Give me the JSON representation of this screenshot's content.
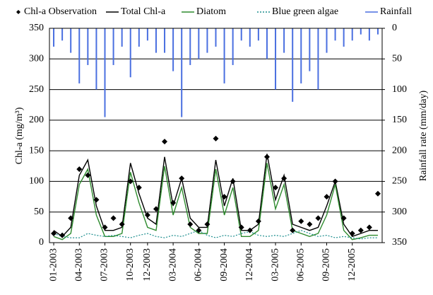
{
  "chart_data": {
    "type": "combo",
    "ylabel": "Chl-a (mg/m³)",
    "y2label": "Rainfall rate (mm/day)",
    "categories": [
      "01-2003",
      null,
      null,
      "04-2003",
      null,
      null,
      "07-2003",
      null,
      null,
      "10-2003",
      null,
      "12-2003",
      null,
      null,
      "03-2004",
      null,
      null,
      "06-2004",
      null,
      null,
      "09-2004",
      null,
      null,
      "12-2004",
      null,
      null,
      "03-2005",
      null,
      null,
      "06-2005",
      null,
      null,
      "09-2005",
      null,
      null,
      "12-2005",
      null,
      null,
      null
    ],
    "ylim": [
      0,
      350
    ],
    "yticks": [
      0,
      50,
      100,
      150,
      200,
      250,
      300,
      350
    ],
    "y2lim": [
      0,
      350
    ],
    "y2ticks": [
      0,
      50,
      100,
      150,
      200,
      250,
      300,
      350
    ],
    "y2_inverted": true,
    "grid": true,
    "legend": "top",
    "series": [
      {
        "name": "Chl-a Observation",
        "mark": "scatter",
        "color": "#000000",
        "values": [
          15,
          12,
          40,
          120,
          110,
          70,
          25,
          40,
          30,
          100,
          90,
          45,
          55,
          165,
          65,
          105,
          30,
          20,
          30,
          170,
          75,
          100,
          25,
          20,
          35,
          140,
          90,
          105,
          20,
          35,
          30,
          40,
          75,
          100,
          40,
          15,
          20,
          25,
          80
        ]
      },
      {
        "name": "Total Chl-a",
        "mark": "line",
        "color": "#000000",
        "line_style": "solid",
        "values": [
          20,
          10,
          25,
          110,
          135,
          60,
          20,
          20,
          25,
          130,
          80,
          40,
          30,
          140,
          60,
          105,
          40,
          25,
          25,
          135,
          60,
          105,
          20,
          20,
          30,
          145,
          70,
          110,
          30,
          25,
          20,
          25,
          60,
          100,
          30,
          10,
          15,
          20,
          20
        ]
      },
      {
        "name": "Diatom",
        "mark": "line",
        "color": "#2e8b2e",
        "line_style": "solid",
        "values": [
          10,
          5,
          15,
          95,
          120,
          45,
          10,
          10,
          15,
          115,
          65,
          25,
          20,
          125,
          45,
          90,
          25,
          15,
          15,
          120,
          45,
          90,
          10,
          10,
          20,
          130,
          55,
          95,
          20,
          15,
          10,
          15,
          45,
          95,
          20,
          5,
          8,
          12,
          12
        ]
      },
      {
        "name": "Blue green algae",
        "mark": "line",
        "color": "#1f8f8f",
        "line_style": "dotted",
        "values": [
          15,
          10,
          8,
          8,
          15,
          12,
          10,
          12,
          10,
          8,
          12,
          15,
          10,
          8,
          12,
          10,
          15,
          20,
          12,
          8,
          12,
          10,
          15,
          18,
          12,
          10,
          12,
          10,
          15,
          20,
          15,
          10,
          12,
          8,
          10,
          8,
          6,
          8,
          8
        ]
      },
      {
        "name": "Rainfall",
        "mark": "bar",
        "axis": "y2",
        "color": "#4a6fe0",
        "values": [
          30,
          20,
          40,
          90,
          60,
          100,
          145,
          60,
          30,
          80,
          30,
          20,
          40,
          40,
          70,
          145,
          60,
          50,
          40,
          30,
          90,
          60,
          20,
          30,
          20,
          50,
          100,
          40,
          120,
          90,
          70,
          100,
          40,
          20,
          30,
          20,
          10,
          20,
          10
        ]
      }
    ]
  }
}
